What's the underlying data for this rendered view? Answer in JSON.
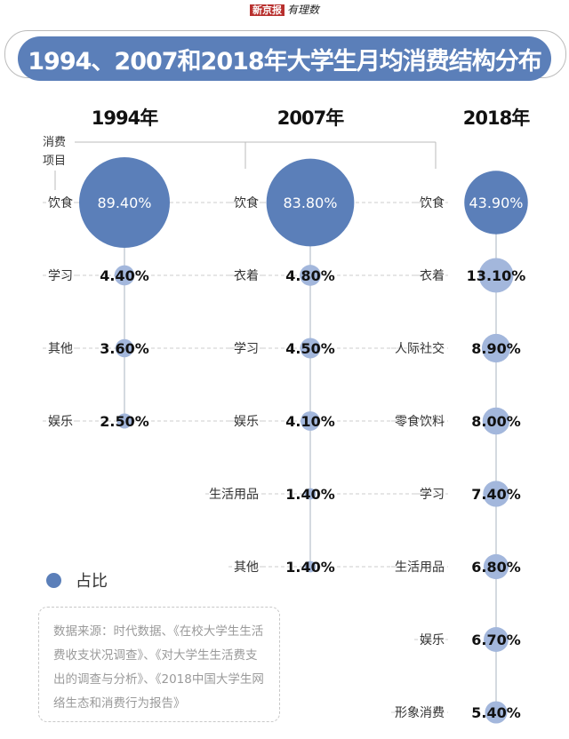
{
  "logo": {
    "brand": "新京报",
    "sub": "有理数"
  },
  "title": "1994、2007和2018年大学生月均消费结构分布",
  "axis_label": "消费项目",
  "legend": {
    "label": "占比",
    "color": "#5b7fb9"
  },
  "source": "数据来源：时代数据、《在校大学生生活费收支状况调查》、《对大学生生活费支出的调查与分析》、《2018中国大学生网络生态和消费行为报告》",
  "chart_data": {
    "type": "bubble",
    "unit": "%",
    "series": [
      {
        "name": "1994年",
        "items": [
          {
            "label": "饮食",
            "value": 89.4
          },
          {
            "label": "学习",
            "value": 4.4
          },
          {
            "label": "其他",
            "value": 3.6
          },
          {
            "label": "娱乐",
            "value": 2.5
          }
        ]
      },
      {
        "name": "2007年",
        "items": [
          {
            "label": "饮食",
            "value": 83.8
          },
          {
            "label": "衣着",
            "value": 4.8
          },
          {
            "label": "学习",
            "value": 4.5
          },
          {
            "label": "娱乐",
            "value": 4.1
          },
          {
            "label": "生活用品",
            "value": 1.4
          },
          {
            "label": "其他",
            "value": 1.4
          }
        ]
      },
      {
        "name": "2018年",
        "items": [
          {
            "label": "饮食",
            "value": 43.9
          },
          {
            "label": "衣着",
            "value": 13.1
          },
          {
            "label": "人际社交",
            "value": 8.9
          },
          {
            "label": "零食饮料",
            "value": 8.0
          },
          {
            "label": "学习",
            "value": 7.4
          },
          {
            "label": "生活用品",
            "value": 6.8
          },
          {
            "label": "娱乐",
            "value": 6.7
          },
          {
            "label": "形象消费",
            "value": 5.4
          }
        ]
      }
    ],
    "colors": {
      "large": "#5b7fb9",
      "small": "#a3b7dc"
    }
  }
}
